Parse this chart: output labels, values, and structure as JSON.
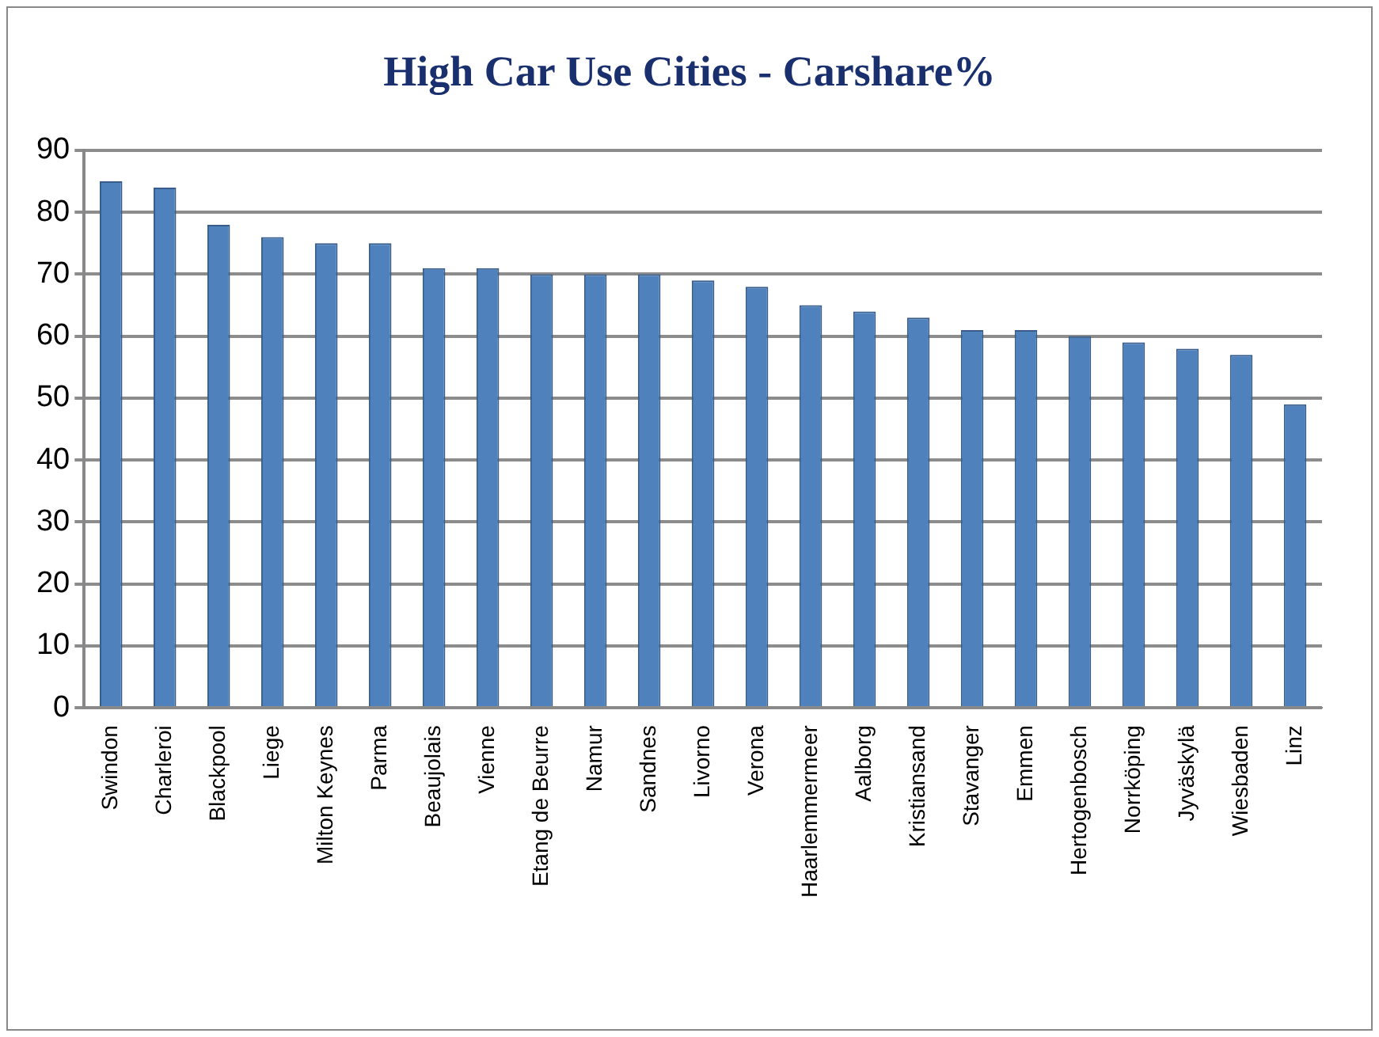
{
  "chart_data": {
    "type": "bar",
    "title": "High Car Use Cities - Carshare%",
    "categories": [
      "Swindon",
      "Charleroi",
      "Blackpool",
      "Liege",
      "Milton Keynes",
      "Parma",
      "Beaujolais",
      "Vienne",
      "Etang de Beurre",
      "Namur",
      "Sandnes",
      "Livorno",
      "Verona",
      "Haarlemmermeer",
      "Aalborg",
      "Kristiansand",
      "Stavanger",
      "Emmen",
      "Hertogenbosch",
      "Norrköping",
      "Jyväskylä",
      "Wiesbaden",
      "Linz"
    ],
    "values": [
      85,
      84,
      78,
      76,
      75,
      75,
      71,
      71,
      70,
      70,
      70,
      69,
      68,
      65,
      64,
      63,
      61,
      61,
      60,
      59,
      58,
      57,
      49
    ],
    "color": "#4f81bd",
    "ylim": [
      0,
      90
    ],
    "yticks": [
      0,
      10,
      20,
      30,
      40,
      50,
      60,
      70,
      80,
      90
    ],
    "grid": "y",
    "legend": false
  }
}
